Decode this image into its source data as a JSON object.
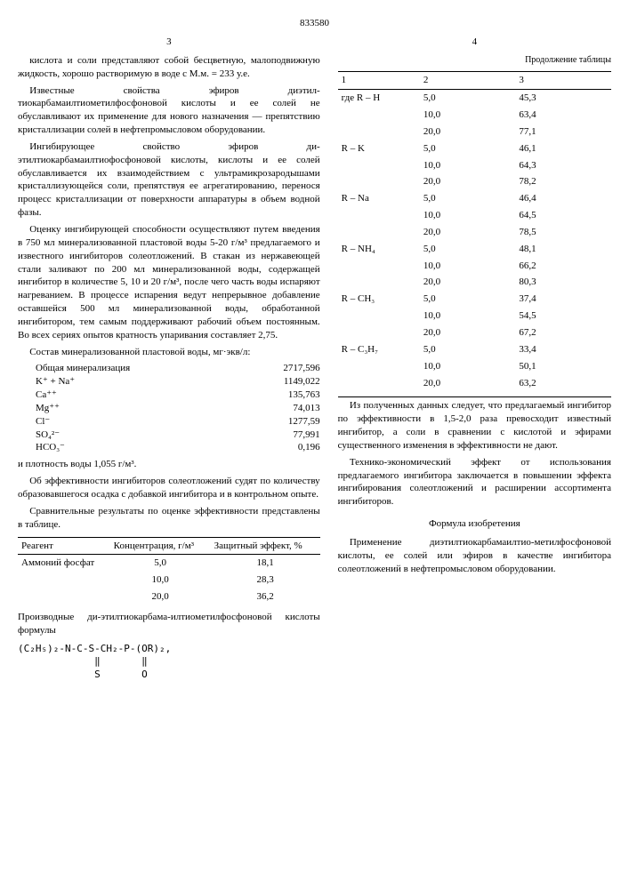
{
  "doc_number": "833580",
  "page_left": "3",
  "page_right": "4",
  "left": {
    "p1": "кислота и соли представляют собой бесцветную, малоподвижную жидкость, хорошо растворимую в воде с М.м. = 233 у.е.",
    "p2": "Известные свойства эфиров диэтил-тиокарбамаилтиометилфосфоновой кислоты и ее солей не обуславливают их применение для нового назначения — препятствию кристаллизации солей в нефтепромысловом оборудовании.",
    "p3": "Ингибирующее свойство эфиров ди-этилтиокарбамаилтиофосфоновой кислоты, кислоты и ее солей обуславливается их взаимодействием с ультрамикрозародышами кристаллизующейся соли, препятствуя ее агрегатированию, перенося процесс кристаллизации от поверхности аппаратуры в объем водной фазы.",
    "p4": "Оценку ингибирующей способности осуществляют путем введения в 750 мл минерализованной пластовой воды 5-20 г/м³ предлагаемого и известного ингибиторов солеотложений. В стакан из нержавеющей стали заливают по 200 мл минерализованной воды, содержащей ингибитор в количестве 5, 10 и 20 г/м³, после чего часть воды испаряют нагреванием. В процессе испарения ведут непрерывное добавление оставшейся 500 мл минерализованной воды, обработанной ингибитором, тем самым поддерживают рабочий объем постоянным. Во всех сериях опытов кратность упаривания составляет 2,75.",
    "p5": "Состав минерализованной пластовой воды, мг·экв/л:",
    "comp": [
      {
        "l": "Общая минерализация",
        "v": "2717,596"
      },
      {
        "l": "K⁺ + Na⁺",
        "v": "1149,022"
      },
      {
        "l": "Ca⁺⁺",
        "v": "135,763"
      },
      {
        "l": "Mg⁺⁺",
        "v": "74,013"
      },
      {
        "l": "Cl⁻",
        "v": "1277,59"
      },
      {
        "l": "SO₄²⁻",
        "v": "77,991"
      },
      {
        "l": "HCO₃⁻",
        "v": "0,196"
      }
    ],
    "p6": "и плотность воды 1,055 г/м³.",
    "p7": "Об эффективности ингибиторов солеотложений судят по количеству образовавшегося осадка с добавкой ингибитора и в контрольном опыте.",
    "p8": "Сравнительные результаты по оценке эффективности представлены в таблице.",
    "th1": "Реагент",
    "th2": "Концентрация, г/м³",
    "th3": "Защитный эффект, %",
    "row1": {
      "r": "Аммоний фосфат",
      "c": "5,0",
      "e": "18,1"
    },
    "row2": {
      "r": "",
      "c": "10,0",
      "e": "28,3"
    },
    "row3": {
      "r": "",
      "c": "20,0",
      "e": "36,2"
    },
    "p9": "Производные ди-этилтиокарбама-илтиометилфосфоновой кислоты формулы",
    "formula": "(C₂H₅)₂-N-C-S-CH₂-P-(OR)₂,\n             ‖       ‖\n             S       O"
  },
  "right": {
    "cont_title": "Продолжение таблицы",
    "h1": "1",
    "h2": "2",
    "h3": "3",
    "rows": [
      {
        "l": "где R – H",
        "c": "5,0",
        "e": "45,3"
      },
      {
        "l": "",
        "c": "10,0",
        "e": "63,4"
      },
      {
        "l": "",
        "c": "20,0",
        "e": "77,1"
      },
      {
        "l": "R – K",
        "c": "5,0",
        "e": "46,1"
      },
      {
        "l": "",
        "c": "10,0",
        "e": "64,3"
      },
      {
        "l": "",
        "c": "20,0",
        "e": "78,2"
      },
      {
        "l": "R – Na",
        "c": "5,0",
        "e": "46,4"
      },
      {
        "l": "",
        "c": "10,0",
        "e": "64,5"
      },
      {
        "l": "",
        "c": "20,0",
        "e": "78,5"
      },
      {
        "l": "R – NH₄",
        "c": "5,0",
        "e": "48,1"
      },
      {
        "l": "",
        "c": "10,0",
        "e": "66,2"
      },
      {
        "l": "",
        "c": "20,0",
        "e": "80,3"
      },
      {
        "l": "R – CH₃",
        "c": "5,0",
        "e": "37,4"
      },
      {
        "l": "",
        "c": "10,0",
        "e": "54,5"
      },
      {
        "l": "",
        "c": "20,0",
        "e": "67,2"
      },
      {
        "l": "R – C₃H₇",
        "c": "5,0",
        "e": "33,4"
      },
      {
        "l": "",
        "c": "10,0",
        "e": "50,1"
      },
      {
        "l": "",
        "c": "20,0",
        "e": "63,2"
      }
    ],
    "p1": "Из полученных данных следует, что предлагаемый ингибитор по эффективности в 1,5-2,0 раза превосходит известный ингибитор, а соли в сравнении с кислотой и эфирами существенного изменения в эффективности не дают.",
    "p2": "Технико-экономический эффект от использования предлагаемого ингибитора заключается в повышении эффекта ингибирования солеотложений и расширении ассортимента ингибиторов.",
    "claims_title": "Формула изобретения",
    "p3": "Применение диэтилтиокарбамаилтио-метилфосфоновой кислоты, ее солей или эфиров в качестве ингибитора солеотложений в нефтепромысловом оборудовании."
  }
}
